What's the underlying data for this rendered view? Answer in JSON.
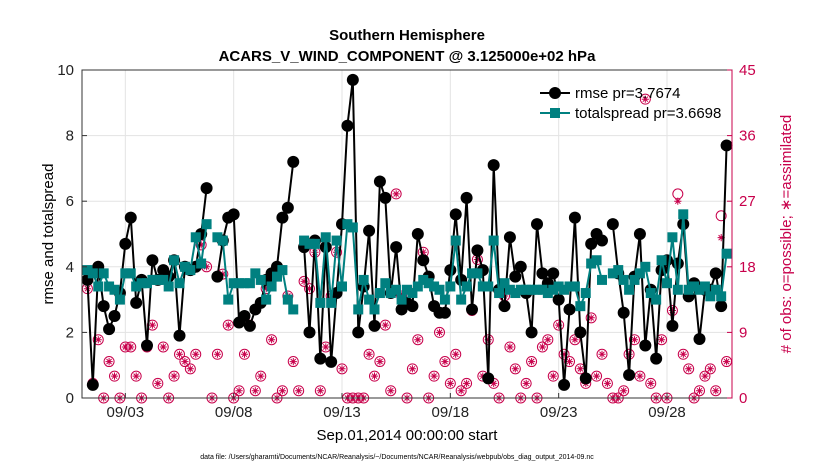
{
  "chart_data": {
    "type": "line",
    "title": "Southern Hemisphere",
    "subtitle": "ACARS_V_WIND_COMPONENT @ 3.125000e+02 hPa",
    "xlabel": "Sep.01,2014 00:00:00 start",
    "ylabel": "rmse and totalspread",
    "ylabel_right": "# of obs: o=possible; ∗=assimilated",
    "footnote": "data file: /Users/gharamti/Documents/NCAR/Reanalysis/~/Documents/NCAR/Reanalysis/webpub/obs_diag_output_2014-09.nc",
    "xlim": [
      0,
      30
    ],
    "ylim": [
      0,
      10
    ],
    "ylim_right": [
      0,
      45
    ],
    "x_ticks": [
      2,
      7,
      12,
      17,
      22,
      27
    ],
    "x_tick_labels": [
      "09/03",
      "09/08",
      "09/13",
      "09/18",
      "09/23",
      "09/28"
    ],
    "y_ticks": [
      0,
      2,
      4,
      6,
      8,
      10
    ],
    "y_ticks_right": [
      0,
      9,
      18,
      27,
      36,
      45
    ],
    "grid": true,
    "legend_position": "top-right",
    "colors": {
      "rmse": "#000000",
      "spread": "#008080",
      "obs": "#c8004b"
    },
    "x": [
      0.25,
      0.5,
      0.75,
      1.0,
      1.25,
      1.5,
      1.75,
      2.0,
      2.25,
      2.5,
      2.75,
      3.0,
      3.25,
      3.5,
      3.75,
      4.0,
      4.25,
      4.5,
      4.75,
      5.0,
      5.25,
      5.5,
      5.75,
      6.0,
      6.25,
      6.5,
      6.75,
      7.0,
      7.25,
      7.5,
      7.75,
      8.0,
      8.25,
      8.5,
      8.75,
      9.0,
      9.25,
      9.5,
      9.75,
      10.0,
      10.25,
      10.5,
      10.75,
      11.0,
      11.25,
      11.5,
      11.75,
      12.0,
      12.25,
      12.5,
      12.75,
      13.0,
      13.25,
      13.5,
      13.75,
      14.0,
      14.25,
      14.5,
      14.75,
      15.0,
      15.25,
      15.5,
      15.75,
      16.0,
      16.25,
      16.5,
      16.75,
      17.0,
      17.25,
      17.5,
      17.75,
      18.0,
      18.25,
      18.5,
      18.75,
      19.0,
      19.25,
      19.5,
      19.75,
      20.0,
      20.25,
      20.5,
      20.75,
      21.0,
      21.25,
      21.5,
      21.75,
      22.0,
      22.25,
      22.5,
      22.75,
      23.0,
      23.25,
      23.5,
      23.75,
      24.0,
      24.25,
      24.5,
      24.75,
      25.0,
      25.25,
      25.5,
      25.75,
      26.0,
      26.25,
      26.5,
      26.75,
      27.0,
      27.25,
      27.5,
      27.75,
      28.0,
      28.25,
      28.5,
      28.75,
      29.0,
      29.25,
      29.5,
      29.75
    ],
    "series": [
      {
        "name": "rmse pr=3.7674",
        "values": [
          3.6,
          0.4,
          4.0,
          2.8,
          2.1,
          2.5,
          3.2,
          4.7,
          5.5,
          2.9,
          3.6,
          1.6,
          4.2,
          3.6,
          3.9,
          3.7,
          4.2,
          1.9,
          4.0,
          3.9,
          4.0,
          5.0,
          6.4,
          null,
          3.7,
          4.8,
          5.5,
          5.6,
          2.3,
          2.5,
          2.2,
          2.7,
          2.9,
          3.6,
          3.8,
          4.0,
          5.5,
          5.8,
          7.2,
          null,
          4.6,
          2.0,
          4.8,
          1.2,
          4.6,
          1.1,
          3.2,
          5.3,
          8.3,
          9.7,
          2.0,
          3.4,
          5.1,
          2.2,
          6.6,
          6.1,
          3.2,
          4.6,
          2.7,
          2.9,
          2.8,
          5.0,
          4.2,
          3.7,
          2.8,
          2.6,
          2.6,
          3.9,
          5.6,
          3.6,
          6.1,
          2.7,
          4.5,
          3.9,
          0.6,
          7.1,
          3.3,
          2.8,
          4.9,
          3.7,
          4.0,
          3.2,
          2.0,
          5.3,
          3.8,
          3.5,
          3.8,
          3.0,
          0.4,
          2.7,
          5.5,
          2.0,
          0.6,
          4.7,
          5.0,
          4.8,
          null,
          5.3,
          3.8,
          2.6,
          0.7,
          3.7,
          5.0,
          1.6,
          3.3,
          1.2,
          3.9,
          4.2,
          2.2,
          4.1,
          5.3,
          3.1,
          3.5,
          1.8,
          3.3,
          3.3,
          3.8,
          2.8,
          7.7
        ]
      },
      {
        "name": "totalspread pr=3.6698",
        "values": [
          3.9,
          3.8,
          3.4,
          3.8,
          3.4,
          3.3,
          3.0,
          3.8,
          3.8,
          3.4,
          3.5,
          3.5,
          3.6,
          3.6,
          3.6,
          3.4,
          4.2,
          3.5,
          4.0,
          3.9,
          4.9,
          4.1,
          5.3,
          null,
          4.9,
          4.8,
          3.0,
          3.5,
          3.5,
          3.5,
          3.5,
          3.8,
          3.6,
          3.0,
          3.4,
          3.7,
          3.9,
          3.0,
          2.7,
          null,
          4.8,
          4.7,
          4.7,
          2.9,
          4.9,
          2.9,
          4.8,
          3.4,
          5.3,
          5.2,
          2.7,
          3.6,
          3.0,
          2.7,
          3.2,
          3.5,
          3.2,
          3.3,
          3.0,
          3.3,
          3.2,
          3.4,
          3.6,
          3.5,
          3.4,
          3.3,
          3.0,
          3.4,
          4.8,
          3.0,
          3.4,
          3.8,
          3.8,
          3.4,
          3.4,
          4.8,
          3.2,
          3.5,
          3.3,
          3.2,
          3.3,
          3.3,
          3.3,
          3.3,
          3.3,
          3.2,
          3.3,
          3.4,
          3.3,
          3.4,
          3.4,
          2.8,
          3.2,
          4.1,
          4.2,
          3.6,
          null,
          3.8,
          3.9,
          3.6,
          3.3,
          3.6,
          3.8,
          4.0,
          3.2,
          3.0,
          4.2,
          3.5,
          4.9,
          3.3,
          5.6,
          3.3,
          3.4,
          3.3,
          3.4,
          3.1,
          3.3,
          3.1,
          4.4
        ]
      },
      {
        "name": "obs possible",
        "values": [
          15,
          2,
          8,
          0,
          5,
          3,
          0,
          7,
          7,
          3,
          0,
          7,
          10,
          2,
          7,
          0,
          3,
          6,
          5,
          4,
          6,
          21,
          18,
          0,
          6,
          17,
          10,
          0,
          1,
          6,
          10,
          1,
          3,
          15,
          8,
          0,
          1,
          14,
          5,
          1,
          16,
          15,
          20,
          1,
          7,
          14,
          20,
          4,
          0,
          0,
          0,
          0,
          6,
          3,
          5,
          10,
          1,
          28,
          14,
          0,
          4,
          8,
          20,
          0,
          3,
          9,
          5,
          2,
          6,
          1,
          2,
          12,
          19,
          3,
          8,
          2,
          0,
          14,
          7,
          4,
          0,
          2,
          5,
          0,
          7,
          8,
          3,
          10,
          6,
          5,
          8,
          4,
          2,
          11,
          3,
          6,
          2,
          0,
          0,
          1,
          6,
          8,
          3,
          41,
          2,
          0,
          8,
          0,
          12,
          28,
          6,
          4,
          0,
          1,
          3,
          4,
          1,
          25,
          5
        ]
      },
      {
        "name": "obs assimilated",
        "values": [
          15,
          2,
          8,
          0,
          5,
          3,
          0,
          7,
          7,
          3,
          0,
          7,
          10,
          2,
          7,
          0,
          3,
          6,
          5,
          4,
          6,
          21,
          18,
          0,
          6,
          17,
          10,
          0,
          1,
          6,
          10,
          1,
          3,
          15,
          8,
          0,
          1,
          14,
          5,
          1,
          16,
          15,
          20,
          1,
          7,
          14,
          20,
          4,
          0,
          0,
          0,
          0,
          6,
          3,
          5,
          10,
          1,
          28,
          14,
          0,
          4,
          8,
          20,
          0,
          3,
          9,
          5,
          2,
          6,
          1,
          2,
          12,
          19,
          3,
          8,
          2,
          0,
          14,
          7,
          4,
          0,
          2,
          5,
          0,
          7,
          8,
          3,
          10,
          6,
          5,
          8,
          4,
          2,
          11,
          3,
          6,
          2,
          0,
          0,
          1,
          6,
          8,
          3,
          41,
          2,
          0,
          8,
          0,
          12,
          27,
          6,
          4,
          0,
          1,
          3,
          4,
          1,
          22,
          5
        ]
      }
    ]
  }
}
